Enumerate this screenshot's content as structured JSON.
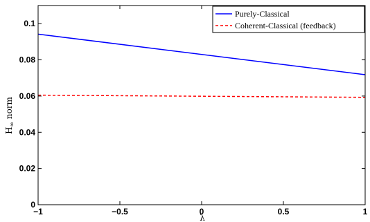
{
  "chart_data": {
    "type": "line",
    "xlabel": "λ",
    "ylabel_main": "H",
    "ylabel_sub": "∞",
    "ylabel_rest": " norm",
    "xlim": [
      -1,
      1
    ],
    "ylim": [
      0,
      0.11
    ],
    "xticks": [
      -1,
      -0.5,
      0,
      0.5,
      1
    ],
    "xtick_labels": [
      "−1",
      "−0.5",
      "0",
      "0.5",
      "1"
    ],
    "yticks": [
      0,
      0.02,
      0.04,
      0.06,
      0.08,
      0.1
    ],
    "ytick_labels": [
      "0",
      "0.02",
      "0.04",
      "0.06",
      "0.08",
      "0.1"
    ],
    "grid": false,
    "legend_position": "top-right",
    "series": [
      {
        "name": "Purely-Classical",
        "color": "#0000ff",
        "style": "solid",
        "x": [
          -1,
          1
        ],
        "y": [
          0.0942,
          0.0718
        ]
      },
      {
        "name": "Coherent-Classical (feedback)",
        "color": "#ff0000",
        "style": "dashed",
        "x": [
          -1,
          1
        ],
        "y": [
          0.0605,
          0.0593
        ]
      }
    ]
  }
}
